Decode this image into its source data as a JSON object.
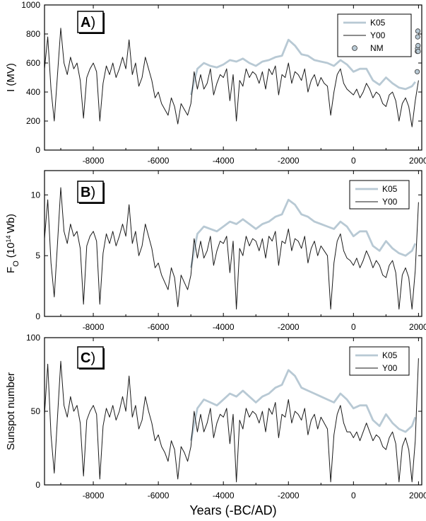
{
  "chart_data": [
    {
      "panel": "A",
      "type": "line",
      "tag": "A",
      "ylabel": "I (MV)",
      "xlabel": "",
      "xlim": [
        -9500,
        2100
      ],
      "ylim": [
        0,
        1000
      ],
      "xticks": [
        -8000,
        -6000,
        -4000,
        -2000,
        0,
        2000
      ],
      "xtick_labels": [
        "-8000",
        "-6000",
        "-4000",
        "-2000",
        "0",
        "2000"
      ],
      "yticks": [
        0,
        200,
        400,
        600,
        800,
        1000
      ],
      "ytick_labels": [
        "0",
        "200",
        "400",
        "600",
        "800",
        "1000"
      ],
      "legend_position": "top-right",
      "grid": false,
      "series": [
        {
          "name": "K05",
          "color": "#b8c9d4",
          "width": 2.8,
          "x": [
            -5000,
            -4800,
            -4600,
            -4400,
            -4200,
            -4000,
            -3800,
            -3600,
            -3400,
            -3200,
            -3000,
            -2800,
            -2600,
            -2400,
            -2200,
            -2000,
            -1800,
            -1600,
            -1400,
            -1200,
            -1000,
            -800,
            -600,
            -400,
            -200,
            0,
            200,
            400,
            600,
            800,
            1000,
            1200,
            1400,
            1600,
            1800,
            1900
          ],
          "y": [
            380,
            560,
            600,
            580,
            570,
            590,
            620,
            610,
            630,
            600,
            580,
            610,
            620,
            640,
            650,
            760,
            720,
            660,
            650,
            620,
            610,
            600,
            580,
            620,
            590,
            540,
            560,
            560,
            480,
            450,
            500,
            460,
            430,
            420,
            440,
            470
          ]
        },
        {
          "name": "Y00",
          "color": "#1a1a1a",
          "width": 1.0,
          "x": [
            -9500,
            -9400,
            -9300,
            -9200,
            -9100,
            -9000,
            -8900,
            -8800,
            -8700,
            -8600,
            -8500,
            -8400,
            -8300,
            -8200,
            -8100,
            -8000,
            -7900,
            -7800,
            -7700,
            -7600,
            -7500,
            -7400,
            -7300,
            -7200,
            -7100,
            -7000,
            -6900,
            -6800,
            -6700,
            -6600,
            -6500,
            -6400,
            -6300,
            -6200,
            -6100,
            -6000,
            -5900,
            -5800,
            -5700,
            -5600,
            -5500,
            -5400,
            -5300,
            -5200,
            -5100,
            -5000,
            -4900,
            -4800,
            -4700,
            -4600,
            -4500,
            -4400,
            -4300,
            -4200,
            -4100,
            -4000,
            -3900,
            -3800,
            -3700,
            -3600,
            -3500,
            -3400,
            -3300,
            -3200,
            -3100,
            -3000,
            -2900,
            -2800,
            -2700,
            -2600,
            -2500,
            -2400,
            -2300,
            -2200,
            -2100,
            -2000,
            -1900,
            -1800,
            -1700,
            -1600,
            -1500,
            -1400,
            -1300,
            -1200,
            -1100,
            -1000,
            -900,
            -800,
            -700,
            -600,
            -500,
            -400,
            -300,
            -200,
            -100,
            0,
            100,
            200,
            300,
            400,
            500,
            600,
            700,
            800,
            900,
            1000,
            1100,
            1200,
            1300,
            1400,
            1500,
            1600,
            1700,
            1800,
            1900,
            2000
          ],
          "y": [
            560,
            780,
            420,
            200,
            520,
            840,
            600,
            520,
            640,
            560,
            600,
            480,
            220,
            500,
            560,
            600,
            540,
            200,
            460,
            580,
            520,
            600,
            500,
            560,
            640,
            560,
            760,
            520,
            600,
            440,
            500,
            640,
            560,
            480,
            360,
            400,
            320,
            280,
            240,
            360,
            300,
            180,
            320,
            280,
            240,
            320,
            540,
            420,
            520,
            420,
            460,
            560,
            380,
            460,
            520,
            500,
            560,
            340,
            520,
            200,
            480,
            440,
            560,
            500,
            540,
            520,
            460,
            540,
            420,
            560,
            520,
            580,
            380,
            520,
            500,
            600,
            460,
            540,
            520,
            480,
            560,
            400,
            480,
            520,
            440,
            500,
            460,
            440,
            240,
            400,
            520,
            560,
            460,
            420,
            400,
            380,
            420,
            360,
            400,
            460,
            420,
            360,
            400,
            380,
            320,
            300,
            380,
            400,
            340,
            200,
            320,
            360,
            300,
            160,
            340,
            480
          ]
        }
      ],
      "extra_series": [
        {
          "name": "NM",
          "type": "scatter",
          "marker": "circle",
          "fill": "#b8c9d4",
          "x": [
            1960,
            1965,
            1970,
            1975,
            1980,
            1985,
            1990
          ],
          "y": [
            540,
            680,
            700,
            780,
            820,
            720,
            680
          ]
        }
      ]
    },
    {
      "panel": "B",
      "type": "line",
      "tag": "B",
      "ylabel": "F",
      "ylabel_sub": "O",
      "ylabel_rest": "(10",
      "ylabel_sup": "14",
      "ylabel_unit": "Wb)",
      "xlabel": "",
      "xlim": [
        -9500,
        2100
      ],
      "ylim": [
        0,
        12
      ],
      "xticks": [
        -8000,
        -6000,
        -4000,
        -2000,
        0,
        2000
      ],
      "xtick_labels": [
        "-8000",
        "-6000",
        "-4000",
        "-2000",
        "0",
        "2000"
      ],
      "yticks": [
        0,
        5,
        10
      ],
      "ytick_labels": [
        "0",
        "5",
        "10"
      ],
      "legend_position": "top-right",
      "grid": false,
      "series": [
        {
          "name": "K05",
          "color": "#b8c9d4",
          "width": 2.8,
          "x": [
            -5000,
            -4800,
            -4600,
            -4400,
            -4200,
            -4000,
            -3800,
            -3600,
            -3400,
            -3200,
            -3000,
            -2800,
            -2600,
            -2400,
            -2200,
            -2000,
            -1800,
            -1600,
            -1400,
            -1200,
            -1000,
            -800,
            -600,
            -400,
            -200,
            0,
            200,
            400,
            600,
            800,
            1000,
            1200,
            1400,
            1600,
            1800,
            1900
          ],
          "y": [
            4.0,
            6.8,
            7.4,
            7.2,
            7.0,
            7.4,
            7.8,
            7.6,
            8.0,
            7.6,
            7.2,
            7.6,
            7.8,
            8.2,
            8.4,
            9.6,
            9.2,
            8.4,
            8.2,
            7.8,
            7.6,
            7.4,
            7.2,
            7.8,
            7.4,
            6.6,
            7.0,
            7.0,
            5.8,
            5.4,
            6.2,
            5.6,
            5.2,
            5.0,
            5.4,
            6.0
          ]
        },
        {
          "name": "Y00",
          "color": "#1a1a1a",
          "width": 1.0,
          "x": [
            -9500,
            -9400,
            -9300,
            -9200,
            -9100,
            -9000,
            -8900,
            -8800,
            -8700,
            -8600,
            -8500,
            -8400,
            -8300,
            -8200,
            -8100,
            -8000,
            -7900,
            -7800,
            -7700,
            -7600,
            -7500,
            -7400,
            -7300,
            -7200,
            -7100,
            -7000,
            -6900,
            -6800,
            -6700,
            -6600,
            -6500,
            -6400,
            -6300,
            -6200,
            -6100,
            -6000,
            -5900,
            -5800,
            -5700,
            -5600,
            -5500,
            -5400,
            -5300,
            -5200,
            -5100,
            -5000,
            -4900,
            -4800,
            -4700,
            -4600,
            -4500,
            -4400,
            -4300,
            -4200,
            -4100,
            -4000,
            -3900,
            -3800,
            -3700,
            -3600,
            -3500,
            -3400,
            -3300,
            -3200,
            -3100,
            -3000,
            -2900,
            -2800,
            -2700,
            -2600,
            -2500,
            -2400,
            -2300,
            -2200,
            -2100,
            -2000,
            -1900,
            -1800,
            -1700,
            -1600,
            -1500,
            -1400,
            -1300,
            -1200,
            -1100,
            -1000,
            -900,
            -800,
            -700,
            -600,
            -500,
            -400,
            -300,
            -200,
            -100,
            0,
            100,
            200,
            300,
            400,
            500,
            600,
            700,
            800,
            900,
            1000,
            1100,
            1200,
            1300,
            1400,
            1500,
            1600,
            1700,
            1800,
            1900,
            2000
          ],
          "y": [
            6.4,
            9.6,
            4.4,
            1.6,
            6.0,
            10.6,
            7.0,
            6.0,
            7.6,
            6.6,
            7.0,
            5.6,
            1.0,
            5.8,
            6.6,
            7.0,
            6.2,
            1.0,
            5.2,
            6.8,
            6.0,
            7.0,
            5.8,
            6.6,
            7.6,
            6.6,
            9.2,
            6.0,
            7.0,
            5.0,
            5.8,
            7.6,
            6.6,
            5.6,
            4.0,
            4.4,
            3.4,
            2.8,
            2.2,
            4.0,
            3.2,
            0.8,
            3.4,
            2.8,
            2.2,
            3.4,
            6.4,
            4.8,
            6.2,
            4.8,
            5.4,
            6.6,
            4.2,
            5.4,
            6.2,
            6.0,
            6.6,
            3.6,
            6.2,
            0.6,
            5.6,
            5.0,
            6.6,
            5.8,
            6.4,
            6.2,
            5.4,
            6.4,
            4.8,
            6.6,
            6.2,
            7.0,
            4.2,
            6.2,
            6.0,
            7.2,
            5.4,
            6.4,
            6.2,
            5.6,
            6.6,
            4.4,
            5.6,
            6.2,
            5.0,
            5.8,
            5.4,
            5.0,
            0.6,
            4.4,
            6.2,
            6.8,
            5.4,
            4.8,
            4.6,
            4.2,
            4.8,
            4.0,
            4.6,
            5.4,
            4.8,
            4.0,
            4.6,
            4.2,
            3.4,
            3.2,
            4.2,
            4.6,
            3.6,
            0.6,
            3.4,
            4.0,
            3.2,
            0.6,
            3.8,
            9.4
          ]
        }
      ]
    },
    {
      "panel": "C",
      "type": "line",
      "tag": "C",
      "ylabel": "Sunspot number",
      "xlabel": "Years (-BC/AD)",
      "xlim": [
        -9500,
        2100
      ],
      "ylim": [
        0,
        100
      ],
      "xticks": [
        -8000,
        -6000,
        -4000,
        -2000,
        0,
        2000
      ],
      "xtick_labels": [
        "-8000",
        "-6000",
        "-4000",
        "-2000",
        "0",
        "2000"
      ],
      "yticks": [
        0,
        50,
        100
      ],
      "ytick_labels": [
        "0",
        "50",
        "100"
      ],
      "legend_position": "top-right",
      "grid": false,
      "series": [
        {
          "name": "K05",
          "color": "#b8c9d4",
          "width": 2.8,
          "x": [
            -5000,
            -4800,
            -4600,
            -4400,
            -4200,
            -4000,
            -3800,
            -3600,
            -3400,
            -3200,
            -3000,
            -2800,
            -2600,
            -2400,
            -2200,
            -2000,
            -1800,
            -1600,
            -1400,
            -1200,
            -1000,
            -800,
            -600,
            -400,
            -200,
            0,
            200,
            400,
            600,
            800,
            1000,
            1200,
            1400,
            1600,
            1800,
            1900
          ],
          "y": [
            30,
            52,
            58,
            56,
            54,
            58,
            62,
            60,
            64,
            60,
            56,
            60,
            62,
            66,
            68,
            78,
            74,
            66,
            64,
            62,
            60,
            58,
            56,
            62,
            58,
            52,
            54,
            54,
            44,
            40,
            48,
            42,
            38,
            36,
            40,
            46
          ]
        },
        {
          "name": "Y00",
          "color": "#1a1a1a",
          "width": 1.0,
          "x": [
            -9500,
            -9400,
            -9300,
            -9200,
            -9100,
            -9000,
            -8900,
            -8800,
            -8700,
            -8600,
            -8500,
            -8400,
            -8300,
            -8200,
            -8100,
            -8000,
            -7900,
            -7800,
            -7700,
            -7600,
            -7500,
            -7400,
            -7300,
            -7200,
            -7100,
            -7000,
            -6900,
            -6800,
            -6700,
            -6600,
            -6500,
            -6400,
            -6300,
            -6200,
            -6100,
            -6000,
            -5900,
            -5800,
            -5700,
            -5600,
            -5500,
            -5400,
            -5300,
            -5200,
            -5100,
            -5000,
            -4900,
            -4800,
            -4700,
            -4600,
            -4500,
            -4400,
            -4300,
            -4200,
            -4100,
            -4000,
            -3900,
            -3800,
            -3700,
            -3600,
            -3500,
            -3400,
            -3300,
            -3200,
            -3100,
            -3000,
            -2900,
            -2800,
            -2700,
            -2600,
            -2500,
            -2400,
            -2300,
            -2200,
            -2100,
            -2000,
            -1900,
            -1800,
            -1700,
            -1600,
            -1500,
            -1400,
            -1300,
            -1200,
            -1100,
            -1000,
            -900,
            -800,
            -700,
            -600,
            -500,
            -400,
            -300,
            -200,
            -100,
            0,
            100,
            200,
            300,
            400,
            500,
            600,
            700,
            800,
            900,
            1000,
            1100,
            1200,
            1300,
            1400,
            1500,
            1600,
            1700,
            1800,
            1900,
            2000
          ],
          "y": [
            48,
            82,
            34,
            8,
            46,
            84,
            54,
            46,
            60,
            50,
            54,
            42,
            6,
            44,
            50,
            54,
            48,
            4,
            40,
            52,
            46,
            54,
            44,
            50,
            60,
            50,
            74,
            46,
            54,
            38,
            44,
            60,
            50,
            42,
            30,
            34,
            26,
            22,
            16,
            30,
            24,
            4,
            26,
            22,
            16,
            26,
            50,
            36,
            48,
            36,
            42,
            52,
            32,
            42,
            48,
            46,
            52,
            28,
            48,
            2,
            44,
            38,
            52,
            46,
            50,
            48,
            42,
            50,
            36,
            52,
            48,
            56,
            32,
            48,
            46,
            58,
            42,
            50,
            48,
            44,
            52,
            34,
            44,
            48,
            38,
            46,
            42,
            38,
            2,
            34,
            48,
            54,
            42,
            36,
            36,
            32,
            36,
            30,
            36,
            42,
            36,
            30,
            34,
            32,
            26,
            24,
            32,
            36,
            28,
            2,
            26,
            32,
            24,
            2,
            30,
            86
          ]
        }
      ]
    }
  ]
}
